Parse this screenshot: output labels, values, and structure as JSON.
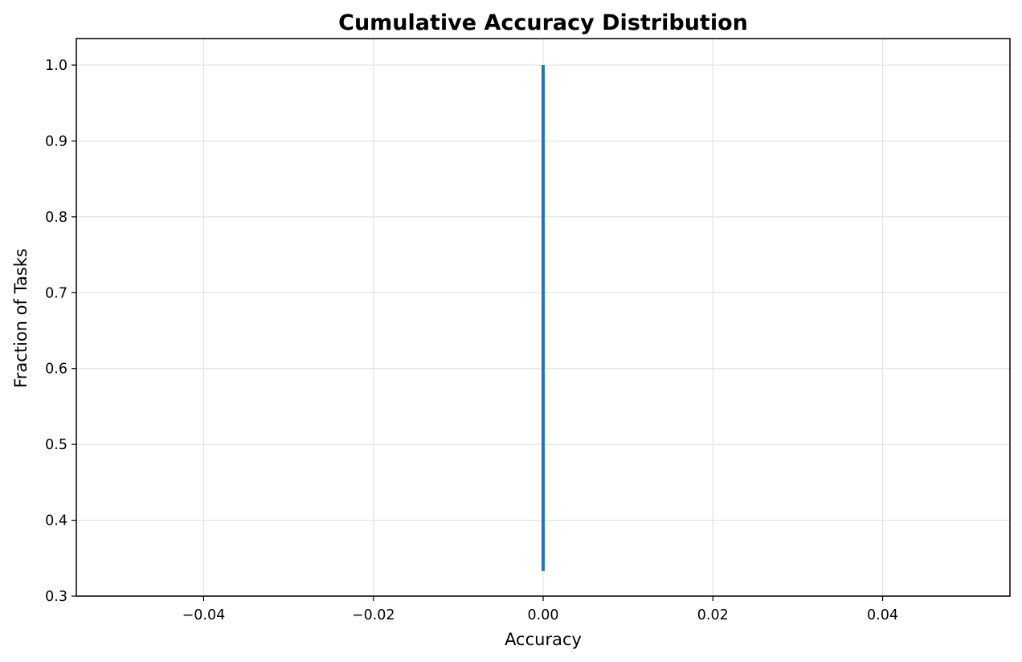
{
  "chart_data": {
    "type": "line",
    "title": "Cumulative Accuracy Distribution",
    "xlabel": "Accuracy",
    "ylabel": "Fraction of Tasks",
    "xlim": [
      -0.055,
      0.055
    ],
    "ylim": [
      0.3,
      1.035
    ],
    "x_ticks": [
      -0.04,
      -0.02,
      0.0,
      0.02,
      0.04
    ],
    "x_tick_labels": [
      "−0.04",
      "−0.02",
      "0.00",
      "0.02",
      "0.04"
    ],
    "y_ticks": [
      0.3,
      0.4,
      0.5,
      0.6,
      0.7,
      0.8,
      0.9,
      1.0
    ],
    "y_tick_labels": [
      "0.3",
      "0.4",
      "0.5",
      "0.6",
      "0.7",
      "0.8",
      "0.9",
      "1.0"
    ],
    "grid": true,
    "legend": "none",
    "series": [
      {
        "color": "#1f77b4",
        "points": [
          {
            "x": 0.0,
            "y": 0.333
          },
          {
            "x": 0.0,
            "y": 1.0
          }
        ]
      }
    ]
  }
}
